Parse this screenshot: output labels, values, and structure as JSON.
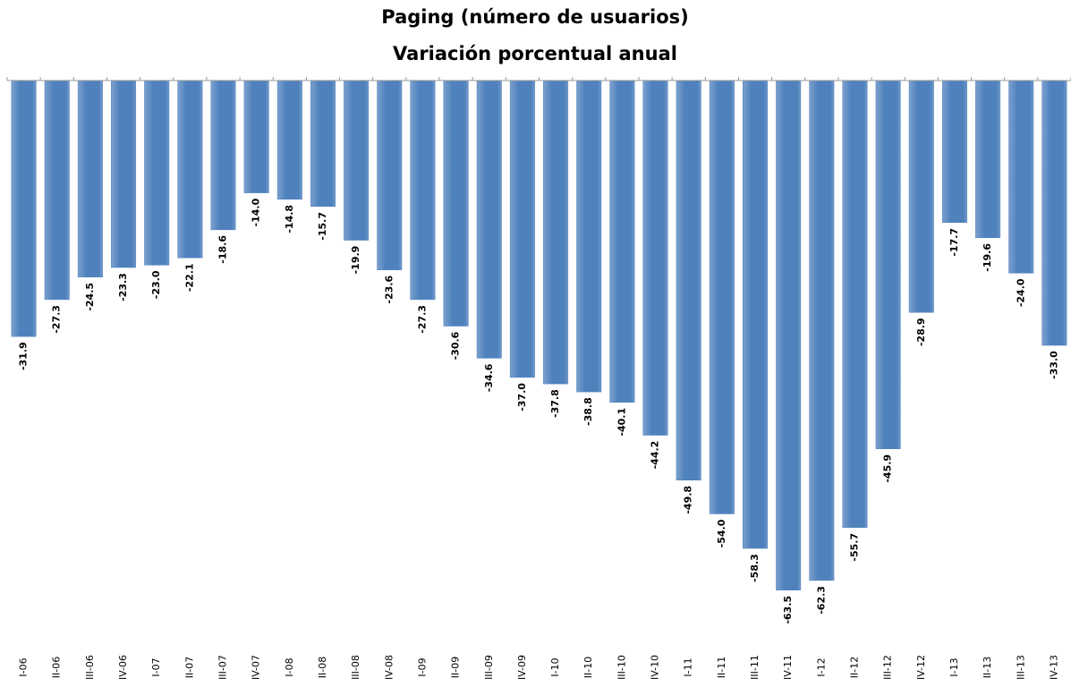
{
  "chart_data": {
    "type": "bar",
    "title": "Paging (número de usuarios)",
    "subtitle": "Variación porcentual anual",
    "categories": [
      "I-06",
      "II-06",
      "III-06",
      "IV-06",
      "I-07",
      "II-07",
      "III-07",
      "IV-07",
      "I-08",
      "II-08",
      "III-08",
      "IV-08",
      "I-09",
      "II-09",
      "III-09",
      "IV-09",
      "I-10",
      "II-10",
      "III-10",
      "IV-10",
      "I-11",
      "II-11",
      "III-11",
      "IV-11",
      "I-12",
      "II-12",
      "III-12",
      "IV-12",
      "I-13",
      "II-13",
      "III-13",
      "IV-13"
    ],
    "values": [
      -31.9,
      -27.3,
      -24.5,
      -23.3,
      -23.0,
      -22.1,
      -18.6,
      -14.0,
      -14.8,
      -15.7,
      -19.9,
      -23.6,
      -27.3,
      -30.6,
      -34.6,
      -37.0,
      -37.8,
      -38.8,
      -40.1,
      -44.2,
      -49.8,
      -54.0,
      -58.3,
      -63.5,
      -62.3,
      -55.7,
      -45.9,
      -28.9,
      -17.7,
      -19.6,
      -24.0,
      -33.0
    ],
    "value_labels": [
      "-31.9",
      "-27.3",
      "-24.5",
      "-23.3",
      "-23.0",
      "-22.1",
      "-18.6",
      "-14.0",
      "-14.8",
      "-15.7",
      "-19.9",
      "-23.6",
      "-27.3",
      "-30.6",
      "-34.6",
      "-37.0",
      "-37.8",
      "-38.8",
      "-40.1",
      "-44.2",
      "-49.8",
      "-54.0",
      "-58.3",
      "-63.5",
      "-62.3",
      "-55.7",
      "-45.9",
      "-28.9",
      "-17.7",
      "-19.6",
      "-24.0",
      "-33.0"
    ],
    "color": "#4f81bd",
    "ylim": [
      -70,
      0
    ]
  }
}
